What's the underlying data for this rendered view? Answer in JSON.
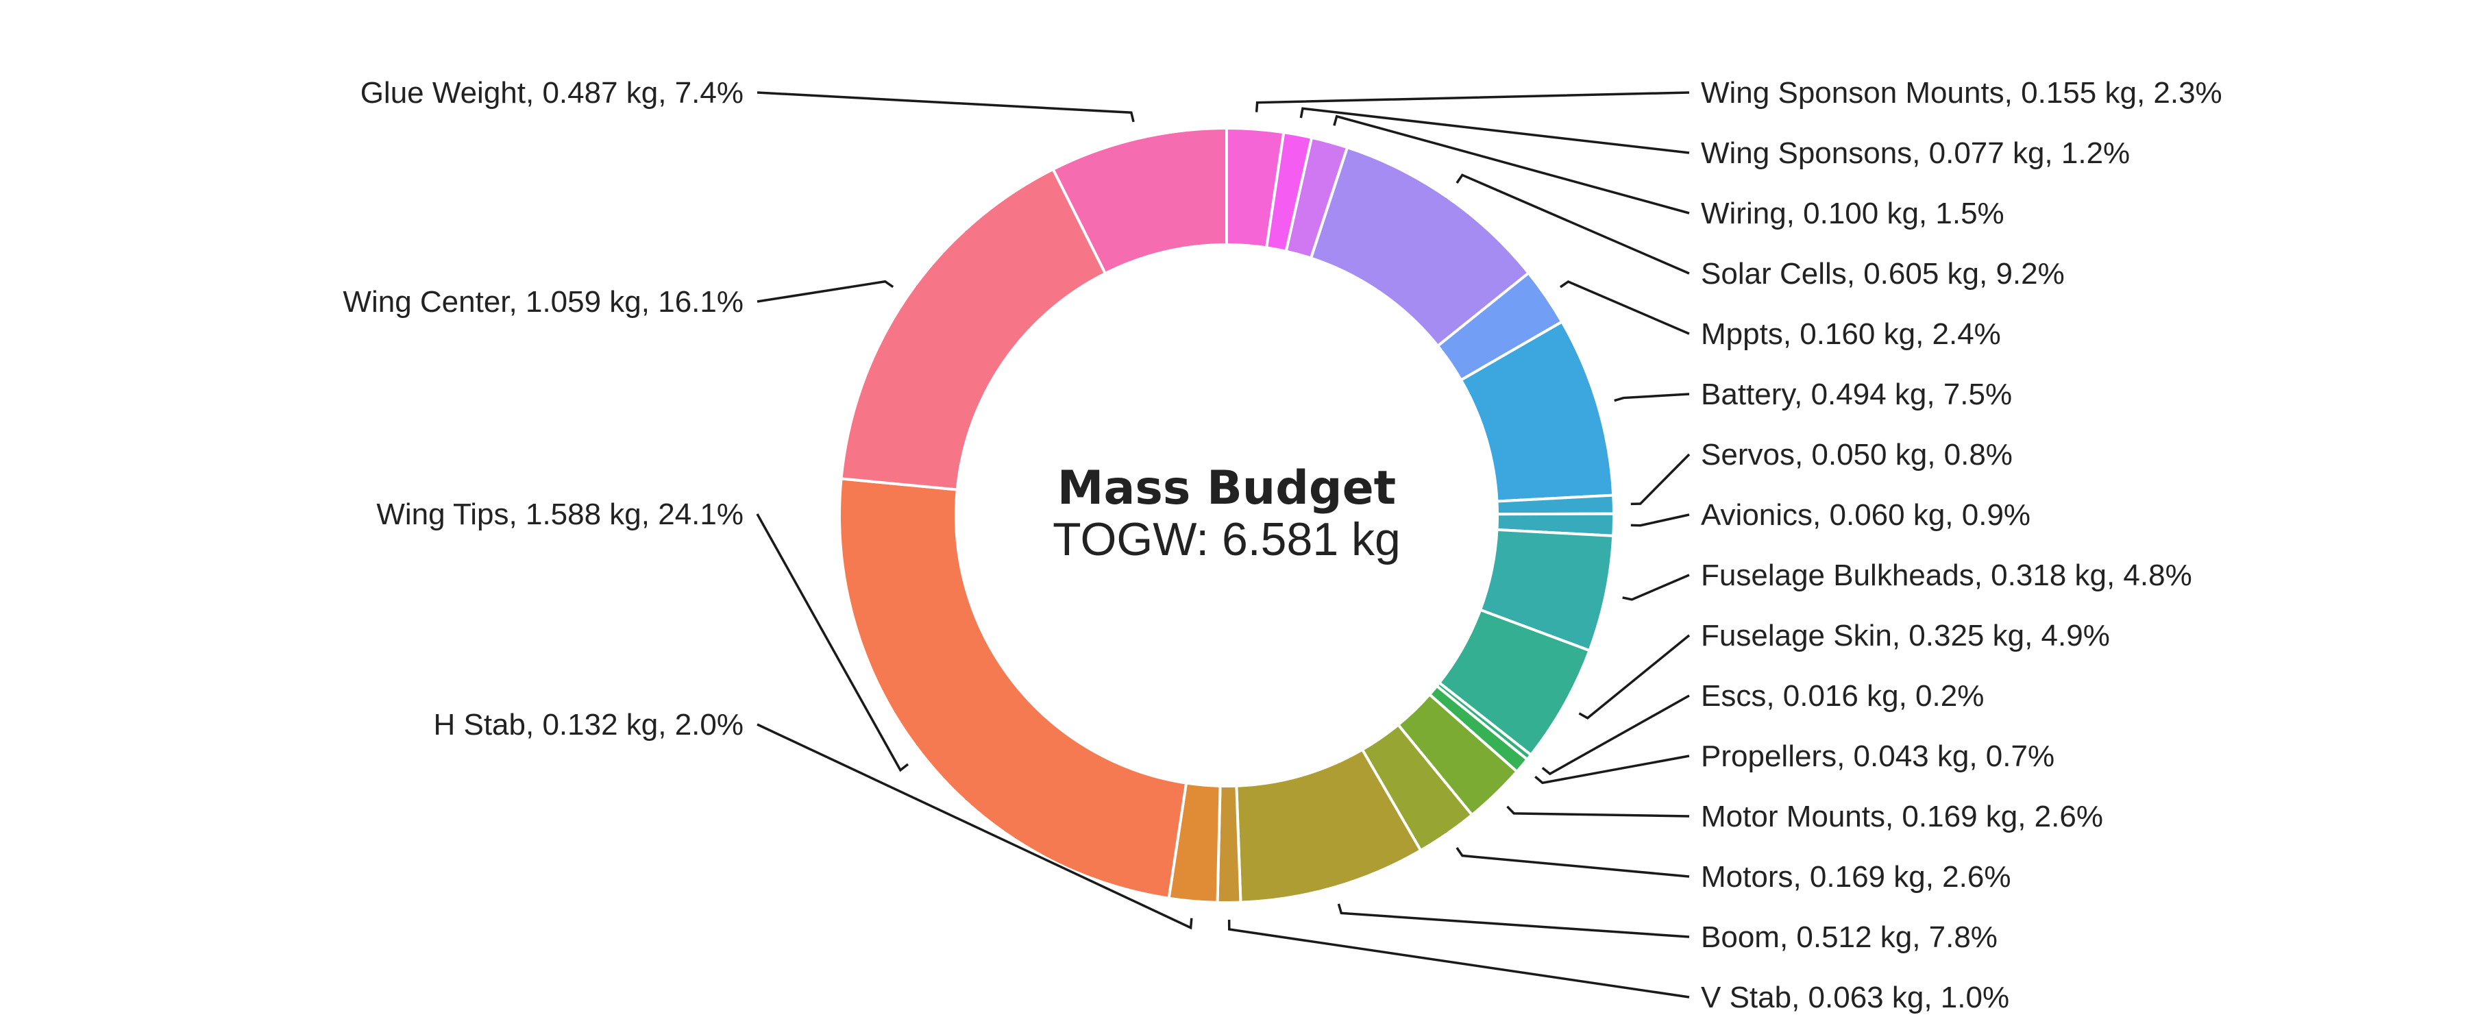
{
  "chart_data": {
    "type": "pie",
    "style": "donut",
    "center_title": "Mass Budget",
    "center_subtitle": "TOGW: 6.581 kg",
    "unit": "kg",
    "slices": [
      {
        "name": "Wing Sponson Mounts",
        "value": 0.155,
        "percent": 2.3,
        "label": "Wing Sponson Mounts, 0.155 kg, 2.3%",
        "color": "#f565d5"
      },
      {
        "name": "Wing Sponsons",
        "value": 0.077,
        "percent": 1.2,
        "label": "Wing Sponsons, 0.077 kg, 1.2%",
        "color": "#f45cf2"
      },
      {
        "name": "Wiring",
        "value": 0.1,
        "percent": 1.5,
        "label": "Wiring, 0.100 kg, 1.5%",
        "color": "#d078f2"
      },
      {
        "name": "Solar Cells",
        "value": 0.605,
        "percent": 9.2,
        "label": "Solar Cells, 0.605 kg, 9.2%",
        "color": "#a58cf2"
      },
      {
        "name": "Mppts",
        "value": 0.16,
        "percent": 2.4,
        "label": "Mppts, 0.160 kg, 2.4%",
        "color": "#739ef5"
      },
      {
        "name": "Battery",
        "value": 0.494,
        "percent": 7.5,
        "label": "Battery, 0.494 kg, 7.5%",
        "color": "#3ca6df"
      },
      {
        "name": "Servos",
        "value": 0.05,
        "percent": 0.8,
        "label": "Servos, 0.050 kg, 0.8%",
        "color": "#38a8cf"
      },
      {
        "name": "Avionics",
        "value": 0.06,
        "percent": 0.9,
        "label": "Avionics, 0.060 kg, 0.9%",
        "color": "#37aabb"
      },
      {
        "name": "Fuselage Bulkheads",
        "value": 0.318,
        "percent": 4.8,
        "label": "Fuselage Bulkheads, 0.318 kg, 4.8%",
        "color": "#36ada9"
      },
      {
        "name": "Fuselage Skin",
        "value": 0.325,
        "percent": 4.9,
        "label": "Fuselage Skin, 0.325 kg, 4.9%",
        "color": "#35af91"
      },
      {
        "name": "Escs",
        "value": 0.016,
        "percent": 0.2,
        "label": "Escs, 0.016 kg, 0.2%",
        "color": "#33b07a"
      },
      {
        "name": "Propellers",
        "value": 0.043,
        "percent": 0.7,
        "label": "Propellers, 0.043 kg, 0.7%",
        "color": "#36b254"
      },
      {
        "name": "Motor Mounts",
        "value": 0.169,
        "percent": 2.6,
        "label": "Motor Mounts, 0.169 kg, 2.6%",
        "color": "#7bab33"
      },
      {
        "name": "Motors",
        "value": 0.169,
        "percent": 2.6,
        "label": "Motors, 0.169 kg, 2.6%",
        "color": "#97a632"
      },
      {
        "name": "Boom",
        "value": 0.512,
        "percent": 7.8,
        "label": "Boom, 0.512 kg, 7.8%",
        "color": "#ad9d32"
      },
      {
        "name": "V Stab",
        "value": 0.063,
        "percent": 1.0,
        "label": "V Stab, 0.063 kg, 1.0%",
        "color": "#c69434"
      },
      {
        "name": "H Stab",
        "value": 0.132,
        "percent": 2.0,
        "label": "H Stab, 0.132 kg, 2.0%",
        "color": "#e08b35"
      },
      {
        "name": "Wing Tips",
        "value": 1.588,
        "percent": 24.1,
        "label": "Wing Tips, 1.588 kg, 24.1%",
        "color": "#f67a51"
      },
      {
        "name": "Wing Center",
        "value": 1.059,
        "percent": 16.1,
        "label": "Wing Center, 1.059 kg, 16.1%",
        "color": "#f67688"
      },
      {
        "name": "Glue Weight",
        "value": 0.487,
        "percent": 7.4,
        "label": "Glue Weight, 0.487 kg, 7.4%",
        "color": "#f66cb0"
      }
    ]
  }
}
